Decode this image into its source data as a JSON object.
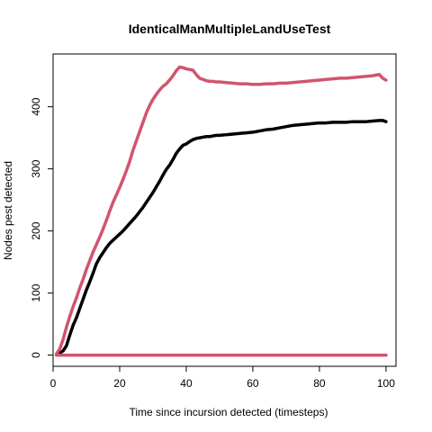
{
  "chart_data": {
    "type": "line",
    "title": "IdenticalManMultipleLandUseTest",
    "xlabel": "Time since incursion detected (timesteps)",
    "ylabel": "Nodes pest detected",
    "xlim": [
      0,
      103
    ],
    "ylim": [
      -18,
      485
    ],
    "xticks": [
      0,
      20,
      40,
      60,
      80,
      100
    ],
    "yticks": [
      0,
      100,
      200,
      300,
      400
    ],
    "grid": false,
    "legend": "none",
    "series": [
      {
        "color": "#000000",
        "x": [
          1,
          2,
          3,
          4,
          5,
          6,
          7,
          8,
          9,
          10,
          11,
          12,
          13,
          14,
          15,
          16,
          17,
          18,
          19,
          20,
          21,
          22,
          23,
          24,
          25,
          26,
          27,
          28,
          29,
          30,
          31,
          32,
          33,
          34,
          35,
          36,
          37,
          38,
          39,
          40,
          41,
          42,
          43,
          44,
          45,
          46,
          47,
          48,
          49,
          50,
          52,
          54,
          56,
          58,
          60,
          62,
          64,
          66,
          68,
          70,
          72,
          74,
          76,
          78,
          80,
          82,
          84,
          86,
          88,
          90,
          92,
          94,
          96,
          98,
          99,
          100
        ],
        "y": [
          1,
          3,
          7,
          15,
          32,
          48,
          60,
          75,
          90,
          105,
          118,
          132,
          147,
          157,
          165,
          173,
          180,
          185,
          190,
          195,
          200,
          206,
          212,
          218,
          224,
          231,
          238,
          246,
          254,
          262,
          271,
          280,
          290,
          299,
          306,
          315,
          325,
          332,
          338,
          340,
          344,
          347,
          349,
          350,
          351,
          352,
          352,
          353,
          354,
          354,
          355,
          356,
          357,
          358,
          359,
          361,
          363,
          364,
          366,
          368,
          370,
          371,
          372,
          373,
          374,
          374,
          375,
          375,
          375,
          376,
          376,
          376,
          377,
          378,
          378,
          376
        ]
      },
      {
        "color": "#d1546d",
        "x": [
          1,
          2,
          3,
          4,
          5,
          6,
          7,
          8,
          9,
          10,
          11,
          12,
          13,
          14,
          15,
          16,
          17,
          18,
          19,
          20,
          21,
          22,
          23,
          24,
          25,
          26,
          27,
          28,
          29,
          30,
          31,
          32,
          33,
          34,
          35,
          36,
          37,
          38,
          39,
          40,
          41,
          42,
          43,
          44,
          45,
          46,
          47,
          48,
          49,
          50,
          52,
          54,
          56,
          58,
          60,
          62,
          64,
          66,
          68,
          70,
          72,
          74,
          76,
          78,
          80,
          82,
          84,
          86,
          88,
          90,
          92,
          94,
          96,
          98,
          99,
          100
        ],
        "y": [
          2,
          10,
          25,
          45,
          62,
          78,
          92,
          108,
          122,
          138,
          152,
          166,
          178,
          190,
          203,
          217,
          232,
          246,
          258,
          270,
          283,
          297,
          312,
          330,
          345,
          360,
          375,
          390,
          402,
          412,
          420,
          427,
          433,
          437,
          443,
          450,
          458,
          464,
          463,
          461,
          460,
          459,
          452,
          446,
          444,
          442,
          441,
          441,
          440,
          440,
          439,
          438,
          437,
          437,
          436,
          436,
          437,
          437,
          438,
          438,
          439,
          440,
          441,
          442,
          443,
          444,
          445,
          446,
          446,
          447,
          448,
          449,
          450,
          452,
          446,
          443
        ]
      },
      {
        "color": "#d1546d",
        "x": [
          1,
          100
        ],
        "y": [
          0,
          0
        ]
      }
    ]
  }
}
